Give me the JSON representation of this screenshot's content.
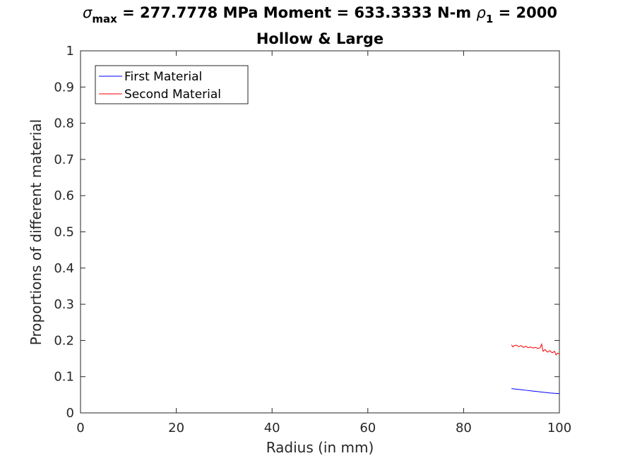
{
  "chart_data": {
    "type": "line",
    "title_line1": {
      "sigma_symbol": "σ",
      "sigma_sub": "max",
      "sigma_text": " = 277.7778 MPa Moment = 633.3333 N-m  ",
      "rho_symbol": "ρ",
      "rho_sub": "1",
      "rho_text": " = 2000"
    },
    "title_line2": "Hollow & Large",
    "xlabel": "Radius (in mm)",
    "ylabel": "Proportions of different material",
    "xlim": [
      0,
      100
    ],
    "ylim": [
      0,
      1
    ],
    "xticks": [
      0,
      20,
      40,
      60,
      80,
      100
    ],
    "xtick_labels": [
      "0",
      "20",
      "40",
      "60",
      "80",
      "100"
    ],
    "yticks": [
      0,
      0.1,
      0.2,
      0.3,
      0.4,
      0.5,
      0.6,
      0.7,
      0.8,
      0.9,
      1
    ],
    "ytick_labels": [
      "0",
      "0.1",
      "0.2",
      "0.3",
      "0.4",
      "0.5",
      "0.6",
      "0.7",
      "0.8",
      "0.9",
      "1"
    ],
    "grid": false,
    "legend_position": "top-left",
    "series": [
      {
        "name": "First Material",
        "color": "#0000ff",
        "x": [
          90,
          91,
          92,
          93,
          94,
          95,
          96,
          97,
          98,
          99,
          100
        ],
        "y": [
          0.067,
          0.0655,
          0.064,
          0.0625,
          0.061,
          0.0595,
          0.058,
          0.0565,
          0.055,
          0.054,
          0.053
        ]
      },
      {
        "name": "Second Material",
        "color": "#ff0000",
        "x": [
          90,
          90.3,
          90.6,
          91,
          91.5,
          92,
          92.5,
          93,
          93.5,
          94,
          94.5,
          95,
          95.5,
          96,
          96.3,
          96.6,
          97,
          97.5,
          98,
          98.5,
          99,
          99.3,
          99.6,
          100
        ],
        "y": [
          0.188,
          0.182,
          0.186,
          0.187,
          0.183,
          0.186,
          0.181,
          0.184,
          0.18,
          0.182,
          0.179,
          0.181,
          0.178,
          0.18,
          0.19,
          0.17,
          0.175,
          0.168,
          0.172,
          0.166,
          0.17,
          0.16,
          0.165,
          0.163
        ]
      }
    ]
  }
}
